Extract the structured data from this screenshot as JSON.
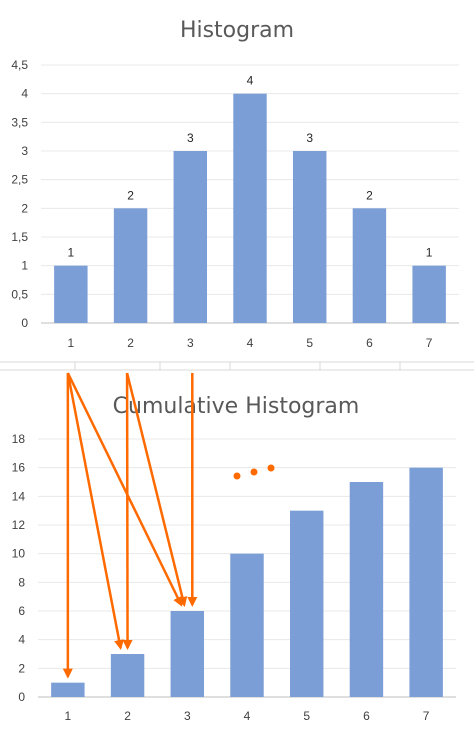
{
  "chart_data": [
    {
      "type": "bar",
      "title": "Histogram",
      "categories": [
        "1",
        "2",
        "3",
        "4",
        "5",
        "6",
        "7"
      ],
      "values": [
        1,
        2,
        3,
        4,
        3,
        2,
        1
      ],
      "data_labels": [
        "1",
        "2",
        "3",
        "4",
        "3",
        "2",
        "1"
      ],
      "ylim": [
        0,
        4.5
      ],
      "yticks": [
        "0",
        "0,5",
        "1",
        "1,5",
        "2",
        "2,5",
        "3",
        "3,5",
        "4",
        "4,5"
      ],
      "ytick_values": [
        0,
        0.5,
        1,
        1.5,
        2,
        2.5,
        3,
        3.5,
        4,
        4.5
      ],
      "grid": true,
      "bar_color": "#7b9ed6"
    },
    {
      "type": "bar",
      "title": "Cumulative Histogram",
      "categories": [
        "1",
        "2",
        "3",
        "4",
        "5",
        "6",
        "7"
      ],
      "values": [
        1,
        3,
        6,
        10,
        13,
        15,
        16
      ],
      "ylim": [
        0,
        18
      ],
      "yticks": [
        "0",
        "2",
        "4",
        "6",
        "8",
        "10",
        "12",
        "14",
        "16",
        "18"
      ],
      "ytick_values": [
        0,
        2,
        4,
        6,
        8,
        10,
        12,
        14,
        16,
        18
      ],
      "grid": true,
      "bar_color": "#7b9ed6",
      "annotation_arrows": [
        {
          "from_category": "1",
          "to_category": "1",
          "to_value": 1
        },
        {
          "from_category": "1",
          "to_category": "2",
          "to_value": 3
        },
        {
          "from_category": "1",
          "to_category": "3",
          "to_value": 6
        },
        {
          "from_category": "2",
          "to_category": "2",
          "to_value": 3
        },
        {
          "from_category": "2",
          "to_category": "3",
          "to_value": 6
        },
        {
          "from_category": "3",
          "to_category": "3",
          "to_value": 6
        }
      ],
      "arrow_color": "#ff6a00"
    }
  ]
}
